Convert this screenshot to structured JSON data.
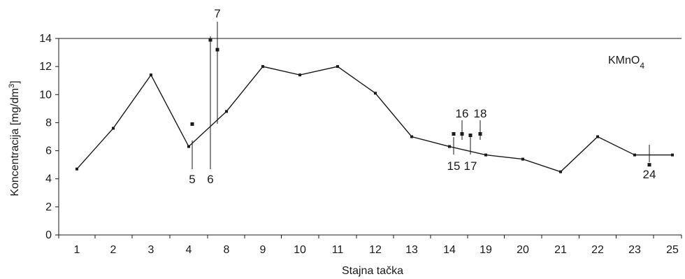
{
  "chart_data": {
    "type": "line",
    "xlabel": "Stajna tačka",
    "ylabel_main": "Koncentracija [mg/dm",
    "ylabel_sup": "3",
    "ylabel_close": "]",
    "ylim": [
      0,
      14
    ],
    "y_ticks": [
      "0",
      "2",
      "4",
      "6",
      "8",
      "10",
      "12",
      "14"
    ],
    "categories": [
      "1",
      "2",
      "3",
      "4",
      "5",
      "6",
      "7",
      "8",
      "9",
      "10",
      "11",
      "12",
      "13",
      "14",
      "15",
      "16",
      "17",
      "18",
      "19",
      "20",
      "21",
      "22",
      "23",
      "24",
      "25"
    ],
    "x_tick_labels": [
      "1",
      "2",
      "3",
      "4",
      "8",
      "9",
      "10",
      "11",
      "12",
      "13",
      "14",
      "19",
      "20",
      "21",
      "22",
      "23",
      "25"
    ],
    "x_tick_positions": [
      1,
      2,
      3,
      4,
      8,
      9,
      10,
      11,
      12,
      13,
      14,
      19,
      20,
      21,
      22,
      23,
      25
    ],
    "series_label": "KMnO",
    "series_label_sub": "4",
    "series": [
      {
        "x": [
          1,
          2,
          3,
          4,
          8,
          9,
          10,
          11,
          12,
          13,
          14,
          19,
          20,
          21,
          22,
          23,
          25
        ],
        "values": [
          4.7,
          7.6,
          11.4,
          6.3,
          8.8,
          12.0,
          11.4,
          12.0,
          10.1,
          7.0,
          6.3,
          5.7,
          5.4,
          4.5,
          7.0,
          5.7,
          5.7
        ]
      }
    ],
    "extra_points": [
      {
        "label": "5",
        "x": 5,
        "value": 7.9
      },
      {
        "label": "6",
        "x": 6,
        "value": 13.9
      },
      {
        "label": "7",
        "x": 7,
        "value": 13.2
      },
      {
        "label": "15",
        "x": 15,
        "value": 7.2
      },
      {
        "label": "16",
        "x": 16,
        "value": 7.2
      },
      {
        "label": "17",
        "x": 17,
        "value": 7.1
      },
      {
        "label": "18",
        "x": 18,
        "value": 7.2
      },
      {
        "label": "24",
        "x": 24,
        "value": 5.0
      }
    ]
  }
}
